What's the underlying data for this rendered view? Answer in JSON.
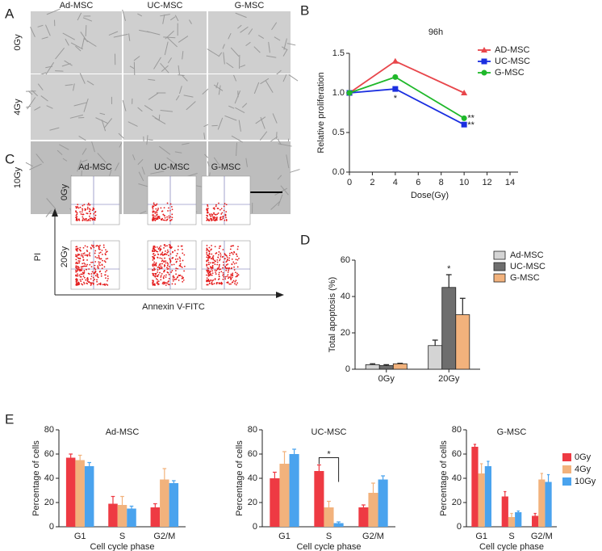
{
  "panel_labels": [
    "A",
    "B",
    "C",
    "D",
    "E"
  ],
  "panel_a": {
    "columns": [
      "Ad-MSC",
      "UC-MSC",
      "G-MSC"
    ],
    "rows": [
      "0Gy",
      "4Gy",
      "10Gy"
    ]
  },
  "panel_c": {
    "columns": [
      "Ad-MSC",
      "UC-MSC",
      "G-MSC"
    ],
    "rows": [
      "0Gy",
      "20Gy"
    ],
    "y_label": "PI",
    "x_label": "Annexin V-FITC"
  },
  "chart_data": [
    {
      "type": "line",
      "title": "96h",
      "x": [
        0,
        4,
        10
      ],
      "xlim": [
        0,
        14
      ],
      "xticks": [
        0,
        2,
        4,
        6,
        8,
        10,
        12,
        14
      ],
      "ylim": [
        0,
        1.5
      ],
      "yticks": [
        {
          "value": 0,
          "label": "0.0"
        },
        0.5,
        {
          "value": 1,
          "label": "1.0"
        },
        1.5
      ],
      "x_label": "Dose(Gy)",
      "y_label": "Relative proliferation",
      "series": [
        {
          "name": "AD-MSC",
          "color": "#e8464b",
          "marker": "triangle",
          "values": [
            1,
            1.4,
            1.0
          ]
        },
        {
          "name": "UC-MSC",
          "color": "#1a2ee0",
          "marker": "square",
          "values": [
            1,
            1.05,
            0.6
          ]
        },
        {
          "name": "G-MSC",
          "color": "#1fb82a",
          "marker": "circle",
          "values": [
            1,
            1.2,
            0.68
          ]
        }
      ],
      "annotations": [
        {
          "text": "*",
          "x": 4,
          "y": 0.93
        },
        {
          "text": "**",
          "x": 10.6,
          "y": 0.68
        },
        {
          "text": "**",
          "x": 10.6,
          "y": 0.59
        }
      ],
      "legend": "right"
    },
    {
      "type": "bar",
      "categories": [
        "0Gy",
        "20Gy"
      ],
      "ylim": [
        0,
        60
      ],
      "yticks": [
        0,
        20,
        40,
        60
      ],
      "y_label": "Total apoptosis (%)",
      "series": [
        {
          "name": "Ad-MSC",
          "color": "#d4d4d4",
          "values": [
            2.5,
            13
          ],
          "errors": [
            0.5,
            3
          ]
        },
        {
          "name": "UC-MSC",
          "color": "#6e6e6e",
          "values": [
            2,
            45
          ],
          "errors": [
            0.5,
            7
          ]
        },
        {
          "name": "G-MSC",
          "color": "#f2b27c",
          "values": [
            3,
            30
          ],
          "errors": [
            0.3,
            9
          ]
        }
      ],
      "annotations": [
        {
          "text": "*",
          "x": "20Gy",
          "y": 55
        }
      ],
      "legend": "right"
    },
    {
      "type": "bar",
      "title": "Ad-MSC",
      "categories": [
        "G1",
        "S",
        "G2/M"
      ],
      "ylim": [
        0,
        80
      ],
      "yticks": [
        0,
        20,
        40,
        60,
        80
      ],
      "x_label": "Cell cycle phase",
      "y_label": "Percentage of cells",
      "series": [
        {
          "name": "0Gy",
          "color": "#ee3a43",
          "values": [
            57,
            19,
            16
          ],
          "errors": [
            3,
            6,
            3
          ]
        },
        {
          "name": "4Gy",
          "color": "#f2b27c",
          "values": [
            55,
            18,
            39
          ],
          "errors": [
            4,
            7,
            9
          ]
        },
        {
          "name": "10Gy",
          "color": "#4aa3ee",
          "values": [
            50,
            15,
            36
          ],
          "errors": [
            3,
            2,
            2
          ]
        }
      ]
    },
    {
      "type": "bar",
      "title": "UC-MSC",
      "categories": [
        "G1",
        "S",
        "G2/M"
      ],
      "ylim": [
        0,
        80
      ],
      "yticks": [
        0,
        20,
        40,
        60,
        80
      ],
      "x_label": "Cell cycle phase",
      "y_label": "Percentage of cells",
      "series": [
        {
          "name": "0Gy",
          "color": "#ee3a43",
          "values": [
            40,
            46,
            16
          ],
          "errors": [
            5,
            5,
            2
          ]
        },
        {
          "name": "4Gy",
          "color": "#f2b27c",
          "values": [
            52,
            16,
            28
          ],
          "errors": [
            10,
            5,
            8
          ]
        },
        {
          "name": "10Gy",
          "color": "#4aa3ee",
          "values": [
            60,
            3,
            39
          ],
          "errors": [
            4,
            1,
            3
          ]
        }
      ],
      "annotations": [
        {
          "text": "*",
          "x": "S",
          "y": 57
        }
      ]
    },
    {
      "type": "bar",
      "title": "G-MSC",
      "categories": [
        "G1",
        "S",
        "G2/M"
      ],
      "ylim": [
        0,
        80
      ],
      "yticks": [
        0,
        20,
        40,
        60,
        80
      ],
      "x_label": "Cell cycle phase",
      "y_label": "Percentage of cells",
      "series": [
        {
          "name": "0Gy",
          "color": "#ee3a43",
          "values": [
            66,
            25,
            9
          ],
          "errors": [
            2,
            4,
            2
          ]
        },
        {
          "name": "4Gy",
          "color": "#f2b27c",
          "values": [
            44,
            8,
            39
          ],
          "errors": [
            8,
            3,
            5
          ]
        },
        {
          "name": "10Gy",
          "color": "#4aa3ee",
          "values": [
            50,
            12,
            37
          ],
          "errors": [
            4,
            1,
            6
          ]
        }
      ],
      "legend": "right"
    }
  ]
}
